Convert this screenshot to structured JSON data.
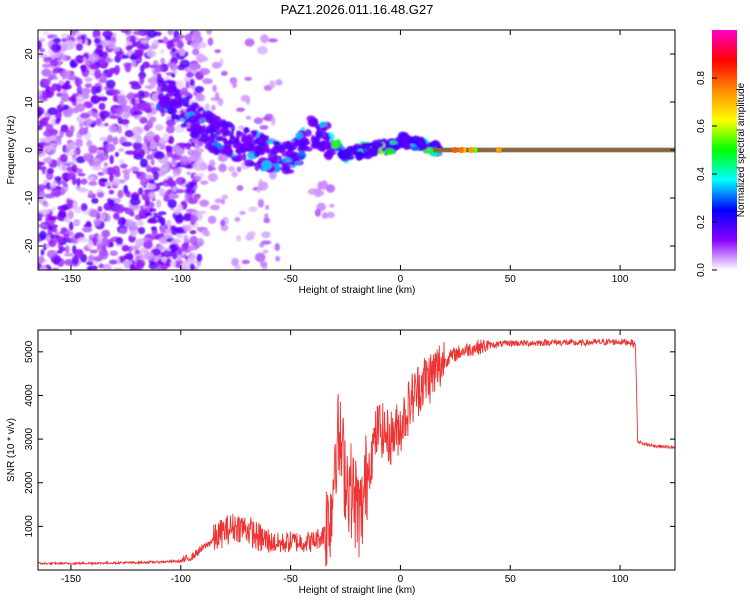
{
  "title": "PAZ1.2026.011.16.48.G27",
  "chart_data": [
    {
      "type": "heatmap",
      "title": "PAZ1.2026.011.16.48.G27",
      "xlabel": "Height of straight line (km)",
      "ylabel": "Frequency (Hz)",
      "xlim": [
        -165,
        125
      ],
      "ylim": [
        -25,
        25
      ],
      "xticks": [
        -150,
        -100,
        -50,
        0,
        50,
        100
      ],
      "yticks": [
        -20,
        -10,
        0,
        10,
        20
      ],
      "colorbar": {
        "label": "Normalized spectral amplitude",
        "range": [
          0,
          1
        ],
        "ticks": [
          0.0,
          0.2,
          0.4,
          0.6,
          0.8
        ],
        "colors": [
          "#ffffff",
          "#8800ff",
          "#0000ff",
          "#00ffff",
          "#00ff00",
          "#ffff00",
          "#ff8800",
          "#ff0000",
          "#ff00cc"
        ]
      },
      "signal_track": [
        {
          "x": -108,
          "f": 12
        },
        {
          "x": -90,
          "f": 5
        },
        {
          "x": -80,
          "f": 2
        },
        {
          "x": -70,
          "f": 1
        },
        {
          "x": -60,
          "f": -1
        },
        {
          "x": -50,
          "f": -2
        },
        {
          "x": -40,
          "f": 4
        },
        {
          "x": -30,
          "f": 1
        },
        {
          "x": -25,
          "f": -1
        },
        {
          "x": -15,
          "f": 0
        },
        {
          "x": -5,
          "f": 0.5
        },
        {
          "x": 0,
          "f": 2
        },
        {
          "x": 10,
          "f": 1
        },
        {
          "x": 18,
          "f": 0
        },
        {
          "x": 125,
          "f": 0
        }
      ],
      "steady_tone": {
        "x_start": 15,
        "x_end": 125,
        "f": 0,
        "amplitude": 0.95
      }
    },
    {
      "type": "line",
      "xlabel": "Height of straight line (km)",
      "ylabel": "SNR (10 * v/v)",
      "xlim": [
        -165,
        125
      ],
      "ylim": [
        0,
        5500
      ],
      "xticks": [
        -150,
        -100,
        -50,
        0,
        50,
        100
      ],
      "yticks": [
        1000,
        2000,
        3000,
        4000,
        5000
      ],
      "series": [
        {
          "name": "SNR",
          "color": "#ee3333",
          "x": [
            -165,
            -150,
            -120,
            -100,
            -95,
            -90,
            -85,
            -80,
            -75,
            -70,
            -65,
            -60,
            -55,
            -50,
            -45,
            -40,
            -35,
            -31,
            -30,
            -28,
            -25,
            -20,
            -18,
            -15,
            -10,
            -5,
            0,
            5,
            10,
            15,
            20,
            25,
            30,
            35,
            40,
            50,
            60,
            70,
            80,
            90,
            100,
            105,
            107,
            108,
            110,
            115,
            125
          ],
          "y": [
            150,
            150,
            170,
            200,
            300,
            500,
            700,
            900,
            1000,
            950,
            750,
            650,
            600,
            650,
            650,
            650,
            800,
            1500,
            2800,
            3000,
            2200,
            1500,
            1200,
            2300,
            3300,
            3000,
            3300,
            3900,
            4300,
            4500,
            4800,
            4950,
            5050,
            5100,
            5150,
            5200,
            5200,
            5220,
            5200,
            5220,
            5230,
            5220,
            5150,
            2950,
            2900,
            2850,
            2800
          ]
        }
      ]
    }
  ]
}
